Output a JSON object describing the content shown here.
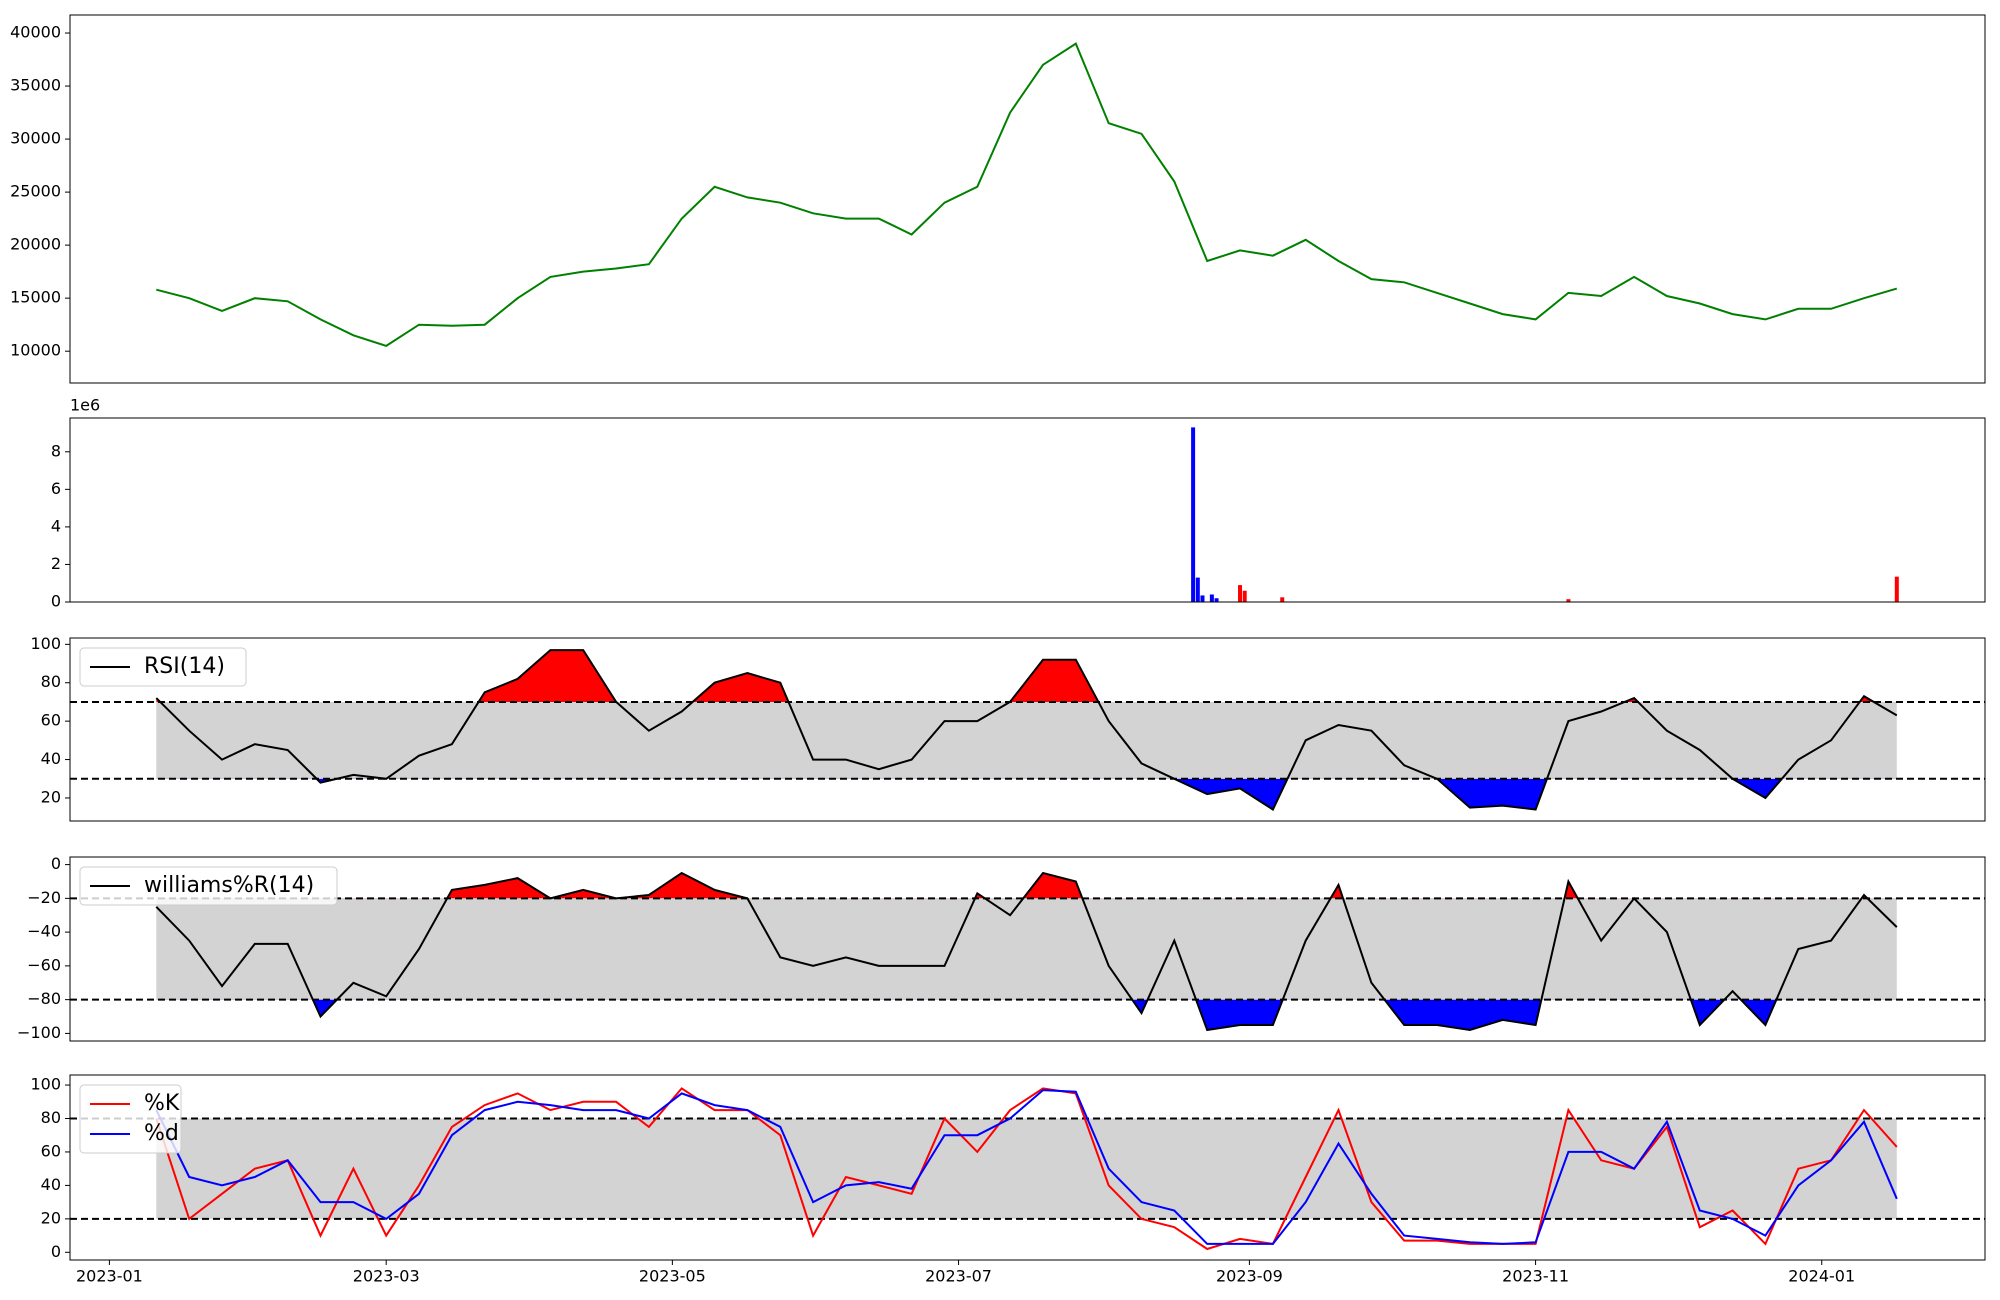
{
  "chart_data": [
    {
      "type": "line",
      "color": "#008000",
      "x": [
        10,
        17,
        24,
        31,
        38,
        45,
        52,
        59,
        66,
        73,
        80,
        87,
        94,
        101,
        108,
        115,
        122,
        129,
        136,
        143,
        150,
        157,
        164,
        171,
        178,
        185,
        192,
        199,
        206,
        213,
        220,
        227,
        234,
        241,
        248,
        255,
        262,
        269,
        276,
        283,
        290,
        297,
        304,
        311,
        318,
        325,
        332,
        339,
        346,
        353,
        360,
        367,
        374,
        381
      ],
      "values": [
        15800,
        15000,
        13800,
        15000,
        14700,
        13000,
        11500,
        10500,
        12500,
        12400,
        12500,
        15000,
        17000,
        17500,
        17800,
        18200,
        22500,
        25500,
        24500,
        24000,
        23000,
        22500,
        22500,
        21000,
        24000,
        25500,
        32500,
        37000,
        39000,
        31500,
        30500,
        26000,
        18500,
        19500,
        19000,
        20500,
        18500,
        16800,
        16500,
        15500,
        14500,
        13500,
        13000,
        15500,
        15200,
        17000,
        15200,
        14500,
        13500,
        13000,
        14000,
        14000,
        15000,
        15900
      ],
      "xlim": [
        -8.4,
        399.8
      ],
      "ylim": [
        7000,
        41700
      ],
      "yticks": [
        10000,
        15000,
        20000,
        25000,
        30000,
        35000,
        40000
      ]
    },
    {
      "type": "bar",
      "offset_label": "1e6",
      "x": [
        231,
        232,
        233,
        235,
        236,
        241,
        242,
        250,
        311,
        381
      ],
      "values": [
        9300000,
        1300000,
        350000,
        400000,
        200000,
        900000,
        600000,
        250000,
        150000,
        1350000
      ],
      "colors": [
        "#0000ff",
        "#0000ff",
        "#0000ff",
        "#0000ff",
        "#0000ff",
        "#ff0000",
        "#ff0000",
        "#ff0000",
        "#ff0000",
        "#ff0000"
      ],
      "xlim": [
        -8.4,
        399.8
      ],
      "ylim": [
        0,
        9800000
      ],
      "yticks": [
        {
          "value": 0,
          "label": "0"
        },
        {
          "value": 2000000,
          "label": "2"
        },
        {
          "value": 4000000,
          "label": "4"
        },
        {
          "value": 6000000,
          "label": "6"
        },
        {
          "value": 8000000,
          "label": "8"
        }
      ]
    },
    {
      "type": "band",
      "legend": "upper left",
      "band_color": "#d3d3d3",
      "above_color": "#ff0000",
      "below_color": "#0000ff",
      "hlines": [
        70,
        30
      ],
      "x": [
        10,
        17,
        24,
        31,
        38,
        45,
        52,
        59,
        66,
        73,
        80,
        87,
        94,
        101,
        108,
        115,
        122,
        129,
        136,
        143,
        150,
        157,
        164,
        171,
        178,
        185,
        192,
        199,
        206,
        213,
        220,
        227,
        234,
        241,
        248,
        255,
        262,
        269,
        276,
        283,
        290,
        297,
        304,
        311,
        318,
        325,
        332,
        339,
        346,
        353,
        360,
        367,
        374,
        381
      ],
      "series": [
        {
          "name": "RSI(14)",
          "color": "#000000",
          "values": [
            72,
            55,
            40,
            48,
            45,
            28,
            32,
            30,
            42,
            48,
            75,
            82,
            97,
            97,
            70,
            55,
            65,
            80,
            85,
            80,
            40,
            40,
            35,
            40,
            60,
            60,
            70,
            92,
            92,
            60,
            38,
            30,
            22,
            25,
            14,
            50,
            58,
            55,
            37,
            30,
            15,
            16,
            14,
            60,
            65,
            72,
            55,
            45,
            30,
            20,
            40,
            50,
            73,
            63
          ]
        }
      ],
      "xlim": [
        -8.4,
        399.8
      ],
      "ylim": [
        8,
        103.3
      ],
      "yticks": [
        20,
        40,
        60,
        80,
        100
      ]
    },
    {
      "type": "band",
      "legend": "upper left",
      "band_color": "#d3d3d3",
      "above_color": "#ff0000",
      "below_color": "#0000ff",
      "hlines": [
        -20,
        -80
      ],
      "x": [
        10,
        17,
        24,
        31,
        38,
        45,
        52,
        59,
        66,
        73,
        80,
        87,
        94,
        101,
        108,
        115,
        122,
        129,
        136,
        143,
        150,
        157,
        164,
        171,
        178,
        185,
        192,
        199,
        206,
        213,
        220,
        227,
        234,
        241,
        248,
        255,
        262,
        269,
        276,
        283,
        290,
        297,
        304,
        311,
        318,
        325,
        332,
        339,
        346,
        353,
        360,
        367,
        374,
        381
      ],
      "series": [
        {
          "name": "williams%R(14)",
          "color": "#000000",
          "values": [
            -25,
            -45,
            -72,
            -47,
            -47,
            -90,
            -70,
            -78,
            -50,
            -15,
            -12,
            -8,
            -20,
            -15,
            -20,
            -18,
            -5,
            -15,
            -20,
            -55,
            -60,
            -55,
            -60,
            -60,
            -60,
            -17,
            -30,
            -5,
            -10,
            -60,
            -88,
            -45,
            -98,
            -95,
            -95,
            -45,
            -12,
            -70,
            -95,
            -95,
            -98,
            -92,
            -95,
            -10,
            -45,
            -20,
            -40,
            -95,
            -75,
            -95,
            -50,
            -45,
            -18,
            -37
          ]
        }
      ],
      "xlim": [
        -8.4,
        399.8
      ],
      "ylim": [
        -104.5,
        4.5
      ],
      "yticks": [
        {
          "value": -100,
          "label": "−100"
        },
        {
          "value": -80,
          "label": "−80"
        },
        {
          "value": -60,
          "label": "−60"
        },
        {
          "value": -40,
          "label": "−40"
        },
        {
          "value": -20,
          "label": "−20"
        },
        0
      ]
    },
    {
      "type": "band",
      "legend": "upper left",
      "band_color": "#d3d3d3",
      "hlines": [
        80,
        20
      ],
      "x": [
        10,
        17,
        24,
        31,
        38,
        45,
        52,
        59,
        66,
        73,
        80,
        87,
        94,
        101,
        108,
        115,
        122,
        129,
        136,
        143,
        150,
        157,
        164,
        171,
        178,
        185,
        192,
        199,
        206,
        213,
        220,
        227,
        234,
        241,
        248,
        255,
        262,
        269,
        276,
        283,
        290,
        297,
        304,
        311,
        318,
        325,
        332,
        339,
        346,
        353,
        360,
        367,
        374,
        381
      ],
      "series": [
        {
          "name": "%K",
          "color": "#ff0000",
          "values": [
            80,
            20,
            35,
            50,
            55,
            10,
            50,
            10,
            40,
            75,
            88,
            95,
            85,
            90,
            90,
            75,
            98,
            85,
            85,
            70,
            10,
            45,
            40,
            35,
            80,
            60,
            85,
            98,
            95,
            40,
            20,
            15,
            2,
            8,
            5,
            45,
            85,
            30,
            7,
            7,
            5,
            5,
            5,
            85,
            55,
            50,
            75,
            15,
            25,
            5,
            50,
            55,
            85,
            63
          ]
        },
        {
          "name": "%d",
          "color": "#0000ff",
          "values": [
            85,
            45,
            40,
            45,
            55,
            30,
            30,
            20,
            35,
            70,
            85,
            90,
            88,
            85,
            85,
            80,
            95,
            88,
            85,
            75,
            30,
            40,
            42,
            38,
            70,
            70,
            80,
            97,
            96,
            50,
            30,
            25,
            5,
            5,
            5,
            30,
            65,
            35,
            10,
            8,
            6,
            5,
            6,
            60,
            60,
            50,
            78,
            25,
            20,
            10,
            40,
            55,
            78,
            32
          ]
        }
      ],
      "xlim": [
        -8.4,
        399.8
      ],
      "ylim": [
        -4.6,
        106
      ],
      "yticks": [
        0,
        20,
        40,
        60,
        80,
        100
      ],
      "xticks": [
        {
          "value": 0,
          "label": "2023-01"
        },
        {
          "value": 59,
          "label": "2023-03"
        },
        {
          "value": 120,
          "label": "2023-05"
        },
        {
          "value": 181,
          "label": "2023-07"
        },
        {
          "value": 243,
          "label": "2023-09"
        },
        {
          "value": 304,
          "label": "2023-11"
        },
        {
          "value": 365,
          "label": "2024-01"
        }
      ]
    }
  ]
}
